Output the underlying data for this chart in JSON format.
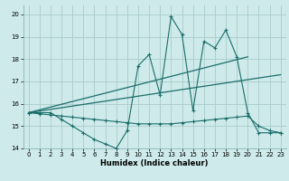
{
  "xlabel": "Humidex (Indice chaleur)",
  "background_color": "#ceeaea",
  "grid_color": "#aacccc",
  "line_color": "#1a6e6a",
  "xlim": [
    -0.5,
    23.5
  ],
  "ylim": [
    14.0,
    20.4
  ],
  "xticks": [
    0,
    1,
    2,
    3,
    4,
    5,
    6,
    7,
    8,
    9,
    10,
    11,
    12,
    13,
    14,
    15,
    16,
    17,
    18,
    19,
    20,
    21,
    22,
    23
  ],
  "yticks": [
    14,
    15,
    16,
    17,
    18,
    19,
    20
  ],
  "series1_x": [
    0,
    1,
    2,
    3,
    4,
    5,
    6,
    7,
    8,
    9,
    10,
    11,
    12,
    13,
    14,
    15,
    16,
    17,
    18,
    19,
    20,
    21,
    22,
    23
  ],
  "series1_y": [
    15.6,
    15.6,
    15.6,
    15.3,
    15.0,
    14.7,
    14.4,
    14.2,
    14.0,
    14.8,
    17.7,
    18.2,
    16.4,
    19.9,
    19.1,
    15.7,
    18.8,
    18.5,
    19.3,
    18.1,
    15.6,
    14.7,
    14.7,
    14.7
  ],
  "series2_x": [
    0,
    1,
    2,
    3,
    4,
    5,
    6,
    7,
    8,
    9,
    10,
    11,
    12,
    13,
    14,
    15,
    16,
    17,
    18,
    19,
    20,
    21,
    22,
    23
  ],
  "series2_y": [
    15.6,
    15.55,
    15.5,
    15.45,
    15.4,
    15.35,
    15.3,
    15.25,
    15.2,
    15.15,
    15.1,
    15.1,
    15.1,
    15.1,
    15.15,
    15.2,
    15.25,
    15.3,
    15.35,
    15.4,
    15.45,
    15.0,
    14.8,
    14.7
  ],
  "series3_x": [
    0,
    23
  ],
  "series3_y": [
    15.6,
    17.3
  ],
  "series4_x": [
    0,
    20
  ],
  "series4_y": [
    15.6,
    18.1
  ]
}
